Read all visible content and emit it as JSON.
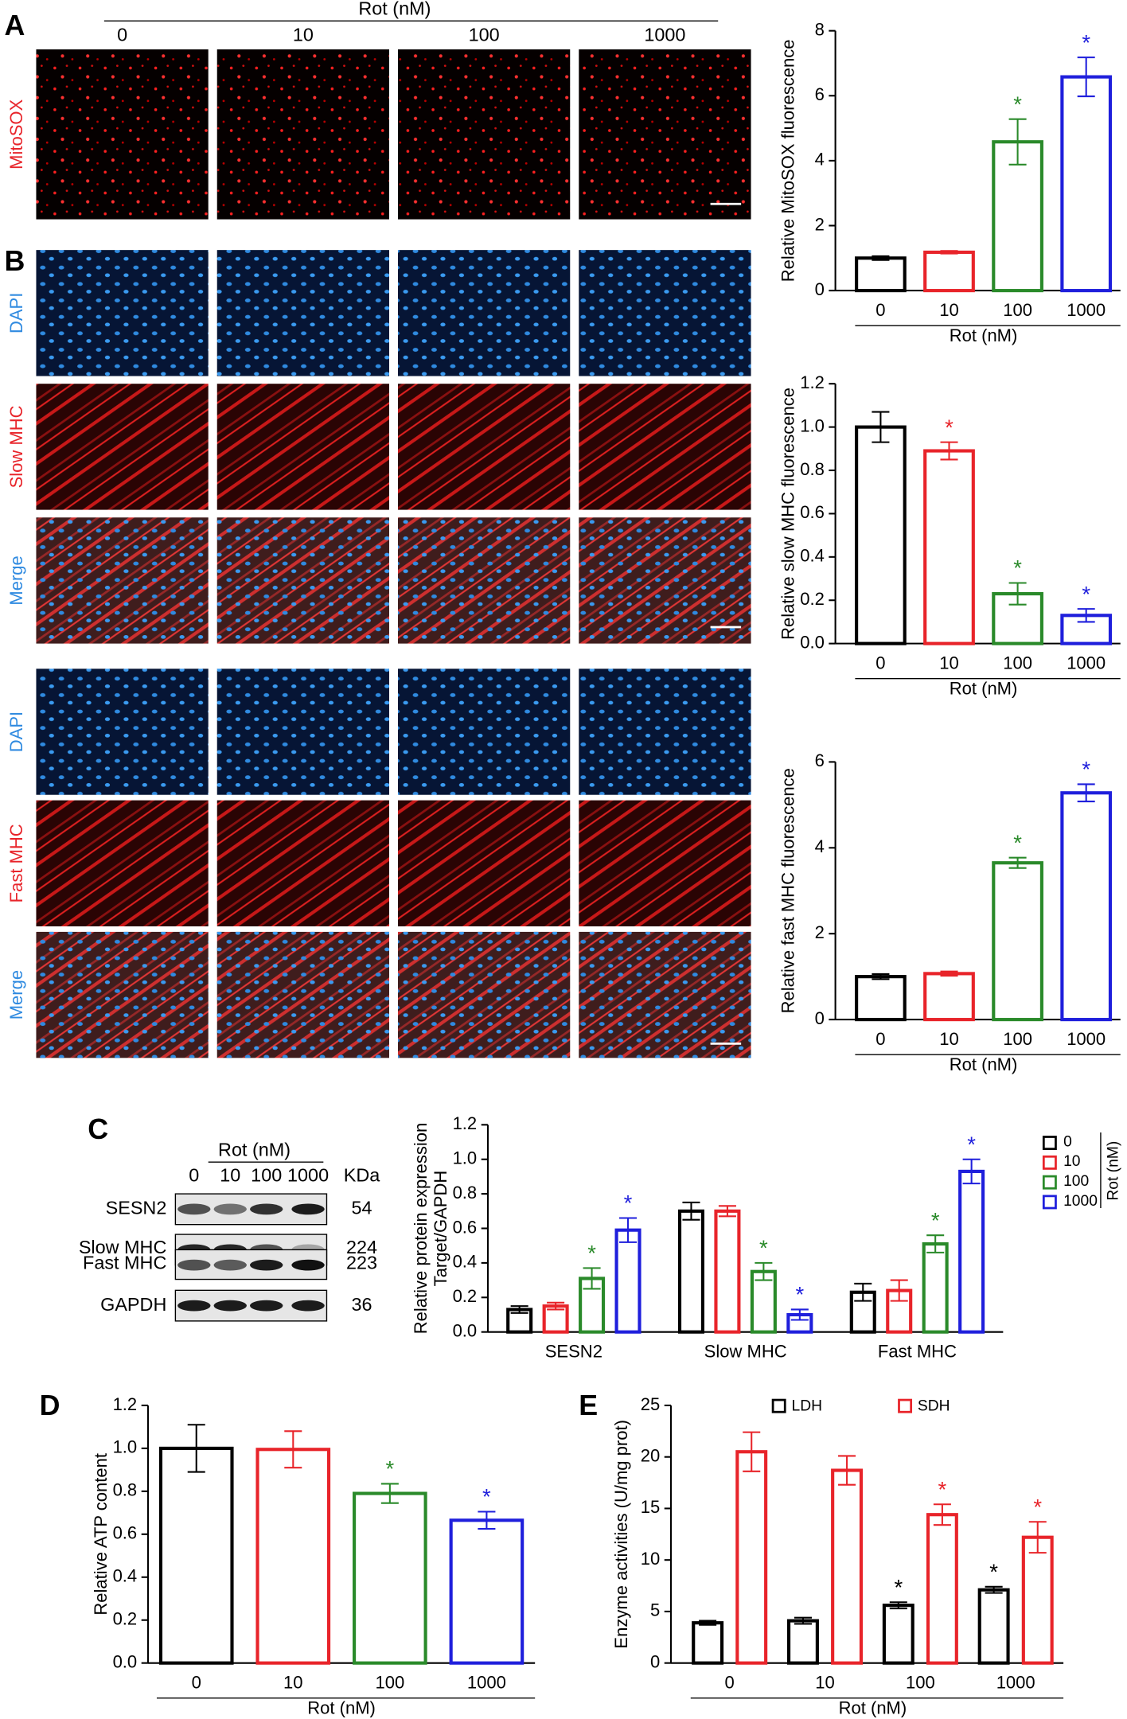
{
  "panels": {
    "a": "A",
    "b": "B",
    "c": "C",
    "d": "D",
    "e": "E"
  },
  "images": {
    "title": "Rot (nM)",
    "columns": [
      "0",
      "10",
      "100",
      "1000"
    ],
    "row_labels": [
      "MitoSOX",
      "DAPI",
      "Slow MHC",
      "Merge",
      "DAPI",
      "Fast MHC",
      "Merge"
    ]
  },
  "blot": {
    "title": "Rot (nM)",
    "lanes": [
      "0",
      "10",
      "100",
      "1000"
    ],
    "unit": "KDa",
    "rows": [
      {
        "label": "SESN2",
        "kda": 54
      },
      {
        "label": "Slow MHC",
        "kda": 224
      },
      {
        "label": "Fast MHC",
        "kda": 223
      },
      {
        "label": "GAPDH",
        "kda": 36
      }
    ]
  },
  "chart_data": [
    {
      "type": "bar",
      "ylabel": "Relative MitoSOX fluorescence",
      "xlabel": "Rot (nM)",
      "categories": [
        "0",
        "10",
        "100",
        "1000"
      ],
      "values": [
        1.0,
        1.18,
        4.58,
        6.58
      ],
      "errors": [
        0.06,
        0.04,
        0.7,
        0.6
      ],
      "colors": [
        "#000000",
        "#e8242a",
        "#2a8a2a",
        "#1f1fdc"
      ],
      "annotations": [
        null,
        null,
        "*",
        "*"
      ],
      "ylim": [
        0,
        8
      ],
      "yticks": [
        0,
        2,
        4,
        6,
        8
      ]
    },
    {
      "type": "bar",
      "ylabel": "Relative slow MHC fluorescence",
      "xlabel": "Rot (nM)",
      "categories": [
        "0",
        "10",
        "100",
        "1000"
      ],
      "values": [
        1.0,
        0.89,
        0.23,
        0.13
      ],
      "errors": [
        0.07,
        0.04,
        0.05,
        0.03
      ],
      "colors": [
        "#000000",
        "#e8242a",
        "#2a8a2a",
        "#1f1fdc"
      ],
      "annotations": [
        null,
        "*",
        "*",
        "*"
      ],
      "ylim": [
        0,
        1.2
      ],
      "yticks": [
        {
          "value": 0,
          "label": "0.0"
        },
        0.2,
        0.4,
        0.6,
        0.8,
        {
          "value": 1,
          "label": "1.0"
        },
        1.2
      ]
    },
    {
      "type": "bar",
      "ylabel": "Relative fast MHC fluorescence",
      "xlabel": "Rot (nM)",
      "categories": [
        "0",
        "10",
        "100",
        "1000"
      ],
      "values": [
        1.0,
        1.07,
        3.65,
        5.28
      ],
      "errors": [
        0.06,
        0.05,
        0.12,
        0.2
      ],
      "colors": [
        "#000000",
        "#e8242a",
        "#2a8a2a",
        "#1f1fdc"
      ],
      "annotations": [
        null,
        null,
        "*",
        "*"
      ],
      "ylim": [
        0,
        6
      ],
      "yticks": [
        0,
        2,
        4,
        6
      ]
    },
    {
      "type": "bar",
      "ylabel": [
        "Relative protein expression",
        "Target/GAPDH"
      ],
      "legend_title": "Rot (nM)",
      "categories": [
        "SESN2",
        "Slow MHC",
        "Fast MHC"
      ],
      "series": [
        {
          "name": "0",
          "color": "#000000",
          "values": [
            0.13,
            0.7,
            0.23
          ],
          "errors": [
            0.02,
            0.05,
            0.05
          ],
          "annotations": [
            null,
            null,
            null
          ]
        },
        {
          "name": "10",
          "color": "#e8242a",
          "values": [
            0.15,
            0.7,
            0.24
          ],
          "errors": [
            0.02,
            0.03,
            0.06
          ],
          "annotations": [
            null,
            null,
            null
          ]
        },
        {
          "name": "100",
          "color": "#2a8a2a",
          "values": [
            0.31,
            0.35,
            0.51
          ],
          "errors": [
            0.06,
            0.05,
            0.05
          ],
          "annotations": [
            "*",
            "*",
            "*"
          ]
        },
        {
          "name": "1000",
          "color": "#1f1fdc",
          "values": [
            0.59,
            0.1,
            0.93
          ],
          "errors": [
            0.07,
            0.03,
            0.07
          ],
          "annotations": [
            "*",
            "*",
            "*"
          ]
        }
      ],
      "ylim": [
        0,
        1.2
      ],
      "yticks": [
        {
          "value": 0,
          "label": "0.0"
        },
        0.2,
        0.4,
        0.6,
        0.8,
        {
          "value": 1,
          "label": "1.0"
        },
        1.2
      ]
    },
    {
      "type": "bar",
      "ylabel": "Relative ATP content",
      "xlabel": "Rot (nM)",
      "categories": [
        "0",
        "10",
        "100",
        "1000"
      ],
      "values": [
        1.0,
        0.995,
        0.79,
        0.665
      ],
      "errors": [
        0.11,
        0.085,
        0.045,
        0.04
      ],
      "colors": [
        "#000000",
        "#e8242a",
        "#2a8a2a",
        "#1f1fdc"
      ],
      "annotations": [
        null,
        null,
        "*",
        "*"
      ],
      "ylim": [
        0,
        1.2
      ],
      "yticks": [
        {
          "value": 0,
          "label": "0.0"
        },
        0.2,
        0.4,
        0.6,
        0.8,
        {
          "value": 1,
          "label": "1.0"
        },
        1.2
      ]
    },
    {
      "type": "bar",
      "ylabel": "Enzyme activities (U/mg prot)",
      "xlabel": "Rot (nM)",
      "categories": [
        "0",
        "10",
        "100",
        "1000"
      ],
      "series": [
        {
          "name": "LDH",
          "color": "#000000",
          "values": [
            3.9,
            4.1,
            5.6,
            7.1
          ],
          "errors": [
            0.2,
            0.3,
            0.3,
            0.3
          ],
          "annotations": [
            null,
            null,
            "*",
            "*"
          ]
        },
        {
          "name": "SDH",
          "color": "#e8242a",
          "values": [
            20.5,
            18.7,
            14.4,
            12.2
          ],
          "errors": [
            1.9,
            1.4,
            1.0,
            1.5
          ],
          "annotations": [
            null,
            null,
            "*",
            "*"
          ]
        }
      ],
      "ylim": [
        0,
        25
      ],
      "yticks": [
        0,
        5,
        10,
        15,
        20,
        25
      ]
    }
  ]
}
